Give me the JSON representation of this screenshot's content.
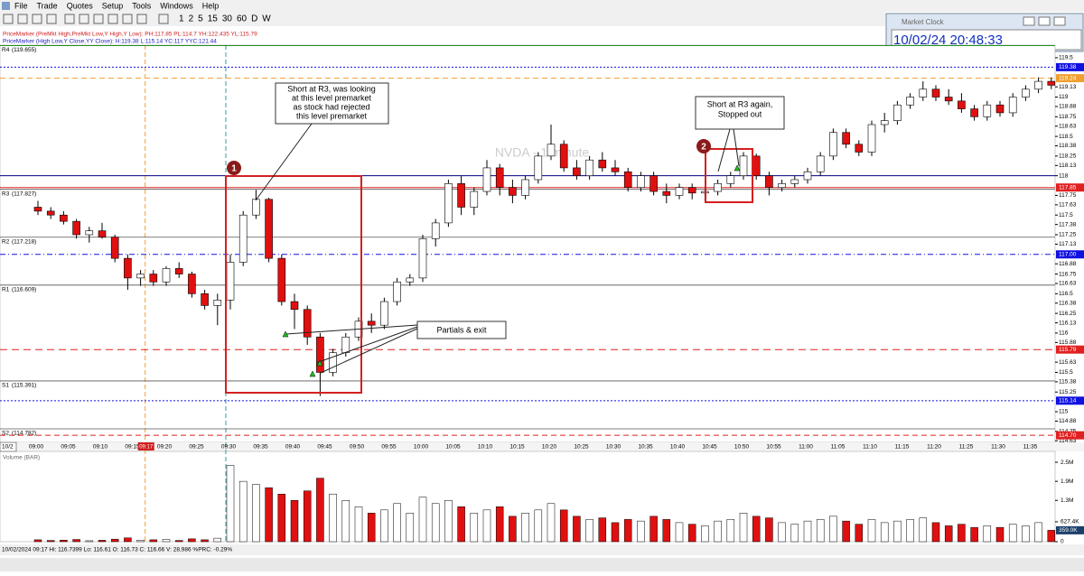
{
  "menu": [
    "File",
    "Trade",
    "Quotes",
    "Setup",
    "Tools",
    "Windows",
    "Help"
  ],
  "toolbar": {
    "intervals": [
      "1",
      "2",
      "5",
      "15",
      "30",
      "60",
      "D",
      "W"
    ]
  },
  "price_markers": [
    "PriceMarker (PreMkt High,PreMkt Low,Y High,Y Low): PH:117.85 PL:114.7 YH:122.435 YL:115.79",
    "PriceMarker (High Low,Y Close,YY Close): H:119.38 L:115.14 YC:117 YYC:121.44"
  ],
  "market_clock": {
    "title": "Market Clock",
    "time": "10/02/24 20:48:33"
  },
  "status_bar": "10/02/2024 09:17  Hi: 116.7399  Lo: 116.61  O: 116.73  C: 116.66  V: 28,986  %PRC: -0.29%",
  "chart_data": {
    "type": "candlestick",
    "watermark": "NVDA - 1 minute",
    "date_label": "10/2",
    "cursor_time": "09:17",
    "time_labels": [
      "09:00",
      "09:05",
      "09:10",
      "09:15",
      "09:20",
      "09:25",
      "09:30",
      "09:35",
      "09:40",
      "09:45",
      "09:50",
      "09:55",
      "10:00",
      "10:05",
      "10:10",
      "10:15",
      "10:20",
      "10:25",
      "10:30",
      "10:35",
      "10:40",
      "10:45",
      "10:50",
      "10:55",
      "11:00",
      "11:05",
      "11:10",
      "11:15",
      "11:20",
      "11:25",
      "11:30",
      "11:35"
    ],
    "ylim": [
      114.61,
      119.66
    ],
    "yticks": [
      119.5,
      119.13,
      119,
      118.88,
      118.75,
      118.63,
      118.5,
      118.38,
      118.25,
      118.13,
      118,
      117.75,
      117.63,
      117.5,
      117.38,
      117.25,
      117.13,
      116.88,
      116.75,
      116.63,
      116.5,
      116.38,
      116.25,
      116.13,
      116,
      115.88,
      115.63,
      115.5,
      115.38,
      115.25,
      115,
      114.88,
      114.75,
      114.63
    ],
    "pivots": [
      {
        "name": "R4",
        "label": "(119.655)",
        "value": 119.655,
        "color": "#008000"
      },
      {
        "name": "R3",
        "label": "(117.827)",
        "value": 117.827,
        "color": "#555555"
      },
      {
        "name": "R2",
        "label": "(117.218)",
        "value": 117.218,
        "color": "#555555"
      },
      {
        "name": "R1",
        "label": "(116.609)",
        "value": 116.609,
        "color": "#555555"
      },
      {
        "name": "S1",
        "label": "(115.391)",
        "value": 115.391,
        "color": "#555555"
      },
      {
        "name": "S2",
        "label": "(114.782)",
        "value": 114.782,
        "color": "#555555"
      }
    ],
    "level_markers": [
      {
        "value": 119.38,
        "label": "119.38",
        "color": "#1010e0",
        "dash": "2,2"
      },
      {
        "value": 119.24,
        "label": "119.24",
        "color": "#f0a030",
        "dash": "6,4"
      },
      {
        "value": 117.85,
        "label": "117.85",
        "color": "#e02020",
        "dash": "none"
      },
      {
        "value": 117,
        "label": "117.00",
        "color": "#1010e0",
        "dash": "6,3,1,3"
      },
      {
        "value": 115.79,
        "label": "115.79",
        "color": "#e02020",
        "dash": "8,5"
      },
      {
        "value": 115.14,
        "label": "115.14",
        "color": "#1010e0",
        "dash": "2,2"
      },
      {
        "value": 114.7,
        "label": "114.70",
        "color": "#e02020",
        "dash": "6,4"
      }
    ],
    "trend_lines": [
      {
        "value": 118,
        "color": "#000080"
      }
    ],
    "candles": [
      [
        117.6,
        117.68,
        117.5,
        117.55
      ],
      [
        117.55,
        117.6,
        117.45,
        117.5
      ],
      [
        117.5,
        117.55,
        117.38,
        117.42
      ],
      [
        117.42,
        117.45,
        117.2,
        117.25
      ],
      [
        117.25,
        117.35,
        117.15,
        117.3
      ],
      [
        117.3,
        117.4,
        117.2,
        117.22
      ],
      [
        117.22,
        117.25,
        116.9,
        116.95
      ],
      [
        116.95,
        117.0,
        116.55,
        116.7
      ],
      [
        116.7,
        116.8,
        116.6,
        116.75
      ],
      [
        116.75,
        116.8,
        116.6,
        116.65
      ],
      [
        116.65,
        116.85,
        116.6,
        116.82
      ],
      [
        116.82,
        116.9,
        116.7,
        116.75
      ],
      [
        116.75,
        116.78,
        116.45,
        116.5
      ],
      [
        116.5,
        116.55,
        116.3,
        116.35
      ],
      [
        116.35,
        116.5,
        116.1,
        116.42
      ],
      [
        116.42,
        117.0,
        116.3,
        116.9
      ],
      [
        116.9,
        117.55,
        116.85,
        117.5
      ],
      [
        117.5,
        117.82,
        117.45,
        117.7
      ],
      [
        117.7,
        117.72,
        116.9,
        116.95
      ],
      [
        116.95,
        117.0,
        116.35,
        116.4
      ],
      [
        116.4,
        116.5,
        116.05,
        116.3
      ],
      [
        116.3,
        116.35,
        115.85,
        115.95
      ],
      [
        115.95,
        116.0,
        115.2,
        115.5
      ],
      [
        115.5,
        115.8,
        115.45,
        115.75
      ],
      [
        115.75,
        116.0,
        115.7,
        115.95
      ],
      [
        115.95,
        116.2,
        115.9,
        116.15
      ],
      [
        116.15,
        116.25,
        116.0,
        116.1
      ],
      [
        116.1,
        116.45,
        116.05,
        116.4
      ],
      [
        116.4,
        116.7,
        116.35,
        116.65
      ],
      [
        116.65,
        116.75,
        116.6,
        116.7
      ],
      [
        116.7,
        117.25,
        116.65,
        117.2
      ],
      [
        117.2,
        117.45,
        117.1,
        117.4
      ],
      [
        117.4,
        117.95,
        117.35,
        117.9
      ],
      [
        117.9,
        118.0,
        117.5,
        117.6
      ],
      [
        117.6,
        117.85,
        117.5,
        117.8
      ],
      [
        117.8,
        118.2,
        117.75,
        118.1
      ],
      [
        118.1,
        118.15,
        117.75,
        117.85
      ],
      [
        117.85,
        117.95,
        117.65,
        117.75
      ],
      [
        117.75,
        118.0,
        117.7,
        117.95
      ],
      [
        117.95,
        118.3,
        117.9,
        118.25
      ],
      [
        118.25,
        118.65,
        118.2,
        118.4
      ],
      [
        118.4,
        118.45,
        118.05,
        118.1
      ],
      [
        118.1,
        118.2,
        117.95,
        118.0
      ],
      [
        118.0,
        118.25,
        117.95,
        118.2
      ],
      [
        118.2,
        118.3,
        118.05,
        118.1
      ],
      [
        118.1,
        118.2,
        118.0,
        118.05
      ],
      [
        118.05,
        118.1,
        117.8,
        117.85
      ],
      [
        117.85,
        118.05,
        117.8,
        118.0
      ],
      [
        118.0,
        118.05,
        117.75,
        117.8
      ],
      [
        117.8,
        117.9,
        117.65,
        117.75
      ],
      [
        117.75,
        117.9,
        117.7,
        117.85
      ],
      [
        117.85,
        117.9,
        117.7,
        117.78
      ],
      [
        117.78,
        117.85,
        117.68,
        117.8
      ],
      [
        117.8,
        117.95,
        117.75,
        117.9
      ],
      [
        117.9,
        118.05,
        117.85,
        118.0
      ],
      [
        118.0,
        118.3,
        117.95,
        118.25
      ],
      [
        118.25,
        118.28,
        117.95,
        118.0
      ],
      [
        118.0,
        118.05,
        117.75,
        117.85
      ],
      [
        117.85,
        117.95,
        117.8,
        117.9
      ],
      [
        117.9,
        118.0,
        117.85,
        117.95
      ],
      [
        117.95,
        118.1,
        117.9,
        118.05
      ],
      [
        118.05,
        118.3,
        118.0,
        118.25
      ],
      [
        118.25,
        118.6,
        118.2,
        118.55
      ],
      [
        118.55,
        118.6,
        118.35,
        118.4
      ],
      [
        118.4,
        118.45,
        118.25,
        118.3
      ],
      [
        118.3,
        118.7,
        118.25,
        118.65
      ],
      [
        118.65,
        118.8,
        118.55,
        118.7
      ],
      [
        118.7,
        118.95,
        118.65,
        118.9
      ],
      [
        118.9,
        119.05,
        118.85,
        119.0
      ],
      [
        119.0,
        119.2,
        118.95,
        119.1
      ],
      [
        119.1,
        119.15,
        118.95,
        119.0
      ],
      [
        119.0,
        119.1,
        118.9,
        118.95
      ],
      [
        118.95,
        119.05,
        118.8,
        118.85
      ],
      [
        118.85,
        118.9,
        118.7,
        118.75
      ],
      [
        118.75,
        118.95,
        118.7,
        118.9
      ],
      [
        118.9,
        118.95,
        118.75,
        118.8
      ],
      [
        118.8,
        119.05,
        118.75,
        119.0
      ],
      [
        119.0,
        119.15,
        118.95,
        119.1
      ],
      [
        119.1,
        119.25,
        119.05,
        119.2
      ],
      [
        119.2,
        119.25,
        119.1,
        119.15
      ]
    ],
    "volume": {
      "title": "Volume (BAR)",
      "ylim": [
        0,
        2700000
      ],
      "yticks": [
        {
          "value": 2500000,
          "label": "2.5M"
        },
        {
          "value": 1900000,
          "label": "1.9M"
        },
        {
          "value": 1300000,
          "label": "1.3M"
        },
        {
          "value": 627400,
          "label": "627.4K"
        },
        0
      ],
      "last": {
        "value": 359000,
        "label": "359.0K"
      },
      "values": [
        60000,
        40000,
        50000,
        70000,
        30000,
        45000,
        80000,
        120000,
        50000,
        60000,
        70000,
        40000,
        90000,
        60000,
        110000,
        2400000,
        1900000,
        1800000,
        1700000,
        1500000,
        1300000,
        1600000,
        2000000,
        1500000,
        1300000,
        1100000,
        900000,
        1000000,
        1200000,
        900000,
        1400000,
        1200000,
        1300000,
        1100000,
        900000,
        1000000,
        1100000,
        800000,
        900000,
        1000000,
        1200000,
        1000000,
        800000,
        700000,
        750000,
        600000,
        700000,
        650000,
        800000,
        700000,
        600000,
        550000,
        500000,
        650000,
        700000,
        900000,
        800000,
        750000,
        600000,
        550000,
        650000,
        700000,
        800000,
        650000,
        550000,
        700000,
        600000,
        650000,
        700000,
        750000,
        600000,
        500000,
        550000,
        450000,
        500000,
        450000,
        550000,
        500000,
        600000,
        359000
      ]
    }
  },
  "annotations": {
    "marker_1": "1",
    "marker_2": "2",
    "callout_1": [
      "Short at R3, was looking",
      "at this level premarket",
      "as stock had rejected",
      "this level premarket"
    ],
    "callout_2": [
      "Short at R3 again,",
      "Stopped out"
    ],
    "callout_3": "Partials & exit"
  }
}
